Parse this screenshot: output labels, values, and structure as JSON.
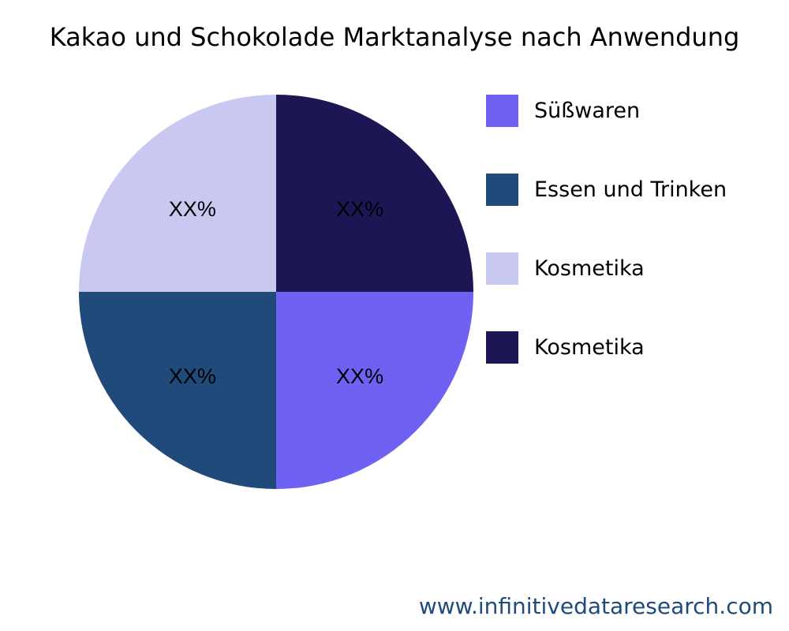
{
  "chart_data": {
    "type": "pie",
    "title": "Kakao und Schokolade Marktanalyse nach Anwendung",
    "categories": [
      "Süßwaren",
      "Essen und Trinken",
      "Kosmetika",
      "Kosmetika"
    ],
    "values": [
      25,
      25,
      25,
      25
    ],
    "data_labels": [
      "XX%",
      "XX%",
      "XX%",
      "XX%"
    ],
    "colors": [
      "#6f61f2",
      "#1f4a7a",
      "#c8c8f0",
      "#1c1655"
    ],
    "legend_position": "right"
  },
  "footer": "www.infinitivedataresearch.com"
}
